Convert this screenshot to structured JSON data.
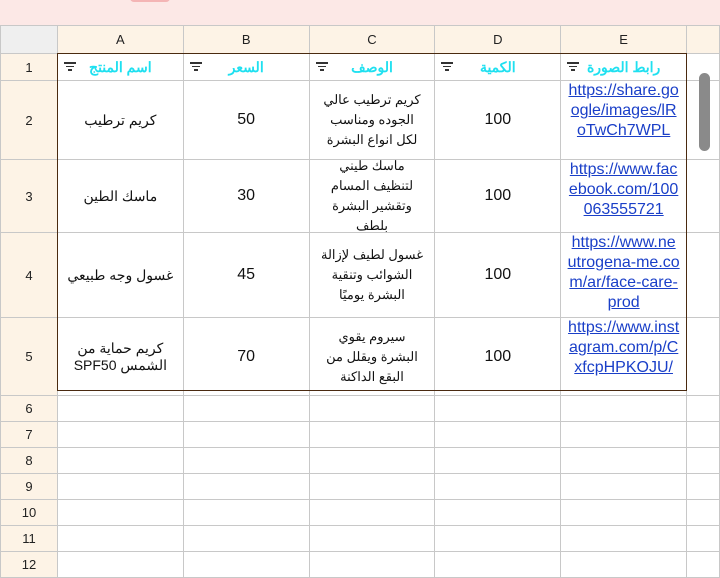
{
  "columns": [
    "A",
    "B",
    "C",
    "D",
    "E"
  ],
  "headers": [
    "اسم المنتج",
    "السعر",
    "الوصف",
    "الكمية",
    "رابط الصورة"
  ],
  "rows": [
    {
      "num": "2",
      "name": "كريم ترطيب",
      "price": "50",
      "desc": "كريم ترطيب عالي الجوده ومناسب لكل انواع البشرة",
      "qty": "100",
      "link": "https://share.google/images/lRoTwCh7WPL"
    },
    {
      "num": "3",
      "name": "ماسك الطين",
      "price": "30",
      "desc": "ماسك طيني لتنظيف المسام وتقشير البشرة بلطف",
      "qty": "100",
      "link": "https://www.facebook.com/100063555721"
    },
    {
      "num": "4",
      "name": "غسول وجه طبيعي",
      "price": "45",
      "desc": "غسول لطيف لإزالة الشوائب وتنقية البشرة يوميًا",
      "qty": "100",
      "link": "https://www.neutrogena-me.com/ar/face-care-prod"
    },
    {
      "num": "5",
      "name": "كريم حماية من الشمس SPF50",
      "price": "70",
      "desc": "سيروم يقوي البشرة ويقلل من البقع الداكنة",
      "qty": "100",
      "link": "https://www.instagram.com/p/CxfcpHPKOJU/"
    }
  ],
  "header_row_num": "1",
  "empty_rows": [
    "6",
    "7",
    "8",
    "9",
    "10",
    "11",
    "12"
  ],
  "colors": {
    "header_text": "#1fe0f0",
    "link": "#1a3fc8",
    "row_header_bg": "#fdf3e6"
  }
}
